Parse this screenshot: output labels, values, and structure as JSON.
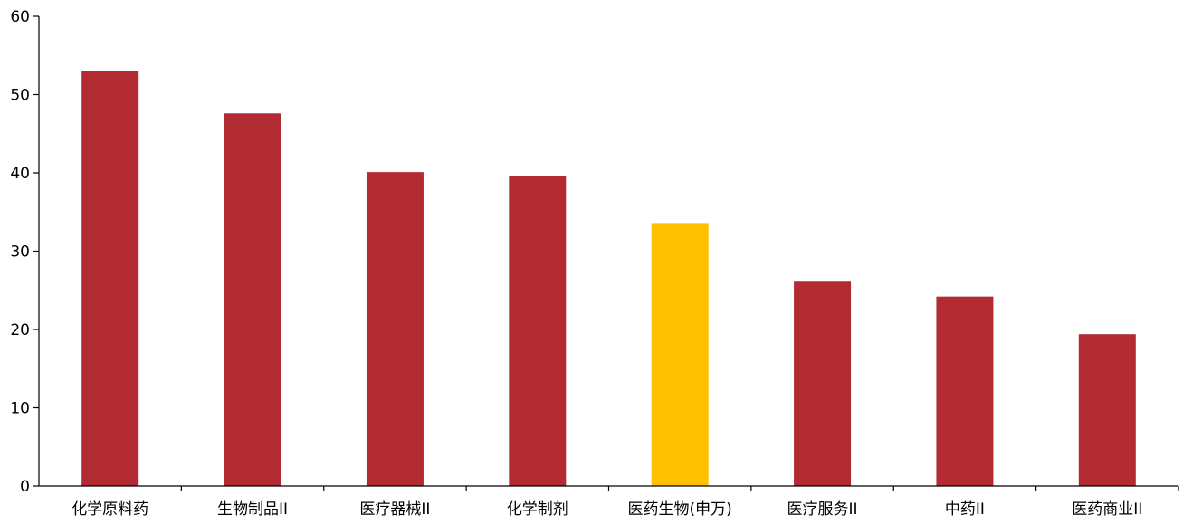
{
  "chart_data": {
    "type": "bar",
    "title": "",
    "xlabel": "",
    "ylabel": "",
    "ylim": [
      0,
      60
    ],
    "yticks": [
      0,
      10,
      20,
      30,
      40,
      50,
      60
    ],
    "grid": false,
    "categories": [
      "化学原料药",
      "生物制品II",
      "医疗器械II",
      "化学制剂",
      "医药生物(申万)",
      "医疗服务II",
      "中药II",
      "医药商业II"
    ],
    "values": [
      53.0,
      47.6,
      40.1,
      39.6,
      33.6,
      26.1,
      24.2,
      19.4
    ],
    "colors": {
      "default_bar": "#B22B32",
      "highlight_bar": "#FFC000",
      "axis": "#000000"
    },
    "highlight_category": "医药生物(申万)"
  }
}
